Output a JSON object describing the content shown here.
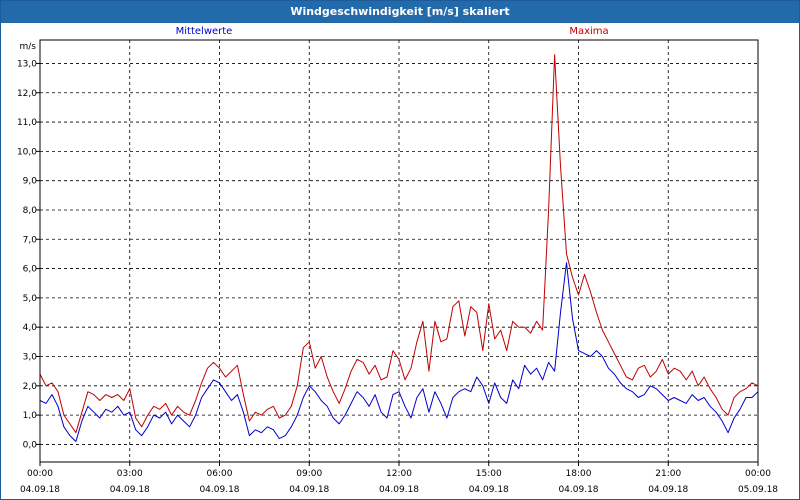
{
  "window": {
    "title": "Windgeschwindigkeit [m/s] skaliert"
  },
  "colors": {
    "mittel": "#0000cc",
    "maxima": "#c00000",
    "title_bar": "#236aab"
  },
  "chart_data": {
    "type": "line",
    "title": "Windgeschwindigkeit [m/s] skaliert",
    "ylabel": "m/s",
    "xlabel": "",
    "ylim": [
      -0.6,
      13.8
    ],
    "xlim": [
      0,
      24
    ],
    "grid": true,
    "y_ticks": [
      "0,0",
      "1,0",
      "2,0",
      "3,0",
      "4,0",
      "5,0",
      "6,0",
      "7,0",
      "8,0",
      "9,0",
      "10,0",
      "11,0",
      "12,0",
      "13,0"
    ],
    "x_ticks": [
      {
        "time": "00:00",
        "date": "04.09.18"
      },
      {
        "time": "03:00",
        "date": "04.09.18"
      },
      {
        "time": "06:00",
        "date": "04.09.18"
      },
      {
        "time": "09:00",
        "date": "04.09.18"
      },
      {
        "time": "12:00",
        "date": "04.09.18"
      },
      {
        "time": "15:00",
        "date": "04.09.18"
      },
      {
        "time": "18:00",
        "date": "04.09.18"
      },
      {
        "time": "21:00",
        "date": "04.09.18"
      },
      {
        "time": "00:00",
        "date": "05.09.18"
      }
    ],
    "x_unit": "hours since 04.09.18 00:00",
    "series": [
      {
        "name": "Mittelwerte",
        "color": "#0000cc",
        "x": [
          0,
          0.2,
          0.4,
          0.6,
          0.8,
          1.0,
          1.2,
          1.4,
          1.6,
          1.8,
          2.0,
          2.2,
          2.4,
          2.6,
          2.8,
          3.0,
          3.2,
          3.4,
          3.6,
          3.8,
          4.0,
          4.2,
          4.4,
          4.6,
          4.8,
          5.0,
          5.2,
          5.4,
          5.6,
          5.8,
          6.0,
          6.2,
          6.4,
          6.6,
          6.8,
          7.0,
          7.2,
          7.4,
          7.6,
          7.8,
          8.0,
          8.2,
          8.4,
          8.6,
          8.8,
          9.0,
          9.2,
          9.4,
          9.6,
          9.8,
          10.0,
          10.2,
          10.4,
          10.6,
          10.8,
          11.0,
          11.2,
          11.4,
          11.6,
          11.8,
          12.0,
          12.2,
          12.4,
          12.6,
          12.8,
          13.0,
          13.2,
          13.4,
          13.6,
          13.8,
          14.0,
          14.2,
          14.4,
          14.6,
          14.8,
          15.0,
          15.2,
          15.4,
          15.6,
          15.8,
          16.0,
          16.2,
          16.4,
          16.6,
          16.8,
          17.0,
          17.2,
          17.4,
          17.6,
          17.8,
          18.0,
          18.2,
          18.4,
          18.6,
          18.8,
          19.0,
          19.2,
          19.4,
          19.6,
          19.8,
          20.0,
          20.2,
          20.4,
          20.6,
          20.8,
          21.0,
          21.2,
          21.4,
          21.6,
          21.8,
          22.0,
          22.2,
          22.4,
          22.6,
          22.8,
          23.0,
          23.2,
          23.4,
          23.6,
          23.8,
          24.0
        ],
        "y": [
          1.5,
          1.4,
          1.7,
          1.3,
          0.6,
          0.3,
          0.1,
          0.8,
          1.3,
          1.1,
          0.9,
          1.2,
          1.1,
          1.3,
          1.0,
          1.1,
          0.5,
          0.3,
          0.6,
          1.0,
          0.9,
          1.1,
          0.7,
          1.0,
          0.8,
          0.6,
          1.0,
          1.6,
          1.9,
          2.2,
          2.1,
          1.8,
          1.5,
          1.7,
          1.1,
          0.3,
          0.5,
          0.4,
          0.6,
          0.5,
          0.2,
          0.3,
          0.6,
          1.0,
          1.6,
          2.0,
          1.8,
          1.5,
          1.3,
          0.9,
          0.7,
          1.0,
          1.4,
          1.8,
          1.6,
          1.3,
          1.7,
          1.1,
          0.9,
          1.7,
          1.8,
          1.3,
          0.9,
          1.6,
          1.9,
          1.1,
          1.8,
          1.4,
          0.9,
          1.6,
          1.8,
          1.9,
          1.8,
          2.3,
          2.0,
          1.4,
          2.1,
          1.6,
          1.4,
          2.2,
          1.9,
          2.7,
          2.4,
          2.6,
          2.2,
          2.8,
          2.5,
          4.5,
          6.2,
          4.3,
          3.2,
          3.1,
          3.0,
          3.2,
          3.0,
          2.6,
          2.4,
          2.1,
          1.9,
          1.8,
          1.6,
          1.7,
          2.0,
          1.9,
          1.7,
          1.5,
          1.6,
          1.5,
          1.4,
          1.7,
          1.5,
          1.6,
          1.3,
          1.1,
          0.8,
          0.4,
          0.9,
          1.2,
          1.6,
          1.6,
          1.8
        ]
      },
      {
        "name": "Maxima",
        "color": "#c00000",
        "x": [
          0,
          0.2,
          0.4,
          0.6,
          0.8,
          1.0,
          1.2,
          1.4,
          1.6,
          1.8,
          2.0,
          2.2,
          2.4,
          2.6,
          2.8,
          3.0,
          3.2,
          3.4,
          3.6,
          3.8,
          4.0,
          4.2,
          4.4,
          4.6,
          4.8,
          5.0,
          5.2,
          5.4,
          5.6,
          5.8,
          6.0,
          6.2,
          6.4,
          6.6,
          6.8,
          7.0,
          7.2,
          7.4,
          7.6,
          7.8,
          8.0,
          8.2,
          8.4,
          8.6,
          8.8,
          9.0,
          9.2,
          9.4,
          9.6,
          9.8,
          10.0,
          10.2,
          10.4,
          10.6,
          10.8,
          11.0,
          11.2,
          11.4,
          11.6,
          11.8,
          12.0,
          12.2,
          12.4,
          12.6,
          12.8,
          13.0,
          13.2,
          13.4,
          13.6,
          13.8,
          14.0,
          14.2,
          14.4,
          14.6,
          14.8,
          15.0,
          15.2,
          15.4,
          15.6,
          15.8,
          16.0,
          16.2,
          16.4,
          16.6,
          16.8,
          17.0,
          17.2,
          17.4,
          17.6,
          17.8,
          18.0,
          18.2,
          18.4,
          18.6,
          18.8,
          19.0,
          19.2,
          19.4,
          19.6,
          19.8,
          20.0,
          20.2,
          20.4,
          20.6,
          20.8,
          21.0,
          21.2,
          21.4,
          21.6,
          21.8,
          22.0,
          22.2,
          22.4,
          22.6,
          22.8,
          23.0,
          23.2,
          23.4,
          23.6,
          23.8,
          24.0
        ],
        "y": [
          2.4,
          2.0,
          2.1,
          1.8,
          1.0,
          0.7,
          0.4,
          1.1,
          1.8,
          1.7,
          1.5,
          1.7,
          1.6,
          1.7,
          1.5,
          1.9,
          0.9,
          0.6,
          1.0,
          1.3,
          1.2,
          1.4,
          1.0,
          1.3,
          1.1,
          1.0,
          1.5,
          2.1,
          2.6,
          2.8,
          2.6,
          2.3,
          2.5,
          2.7,
          1.7,
          0.8,
          1.1,
          1.0,
          1.2,
          1.3,
          0.9,
          1.0,
          1.3,
          2.0,
          3.3,
          3.5,
          2.6,
          3.0,
          2.3,
          1.8,
          1.4,
          1.9,
          2.5,
          2.9,
          2.8,
          2.4,
          2.7,
          2.2,
          2.3,
          3.2,
          2.9,
          2.2,
          2.6,
          3.5,
          4.2,
          2.5,
          4.2,
          3.5,
          3.6,
          4.7,
          4.9,
          3.7,
          4.7,
          4.5,
          3.2,
          4.8,
          3.6,
          3.9,
          3.2,
          4.2,
          4.0,
          4.0,
          3.8,
          4.2,
          3.9,
          8.0,
          13.3,
          9.5,
          6.5,
          5.7,
          5.1,
          5.8,
          5.2,
          4.5,
          3.9,
          3.5,
          3.1,
          2.7,
          2.3,
          2.2,
          2.6,
          2.7,
          2.3,
          2.5,
          2.9,
          2.4,
          2.6,
          2.5,
          2.2,
          2.5,
          2.0,
          2.3,
          1.9,
          1.6,
          1.2,
          1.0,
          1.6,
          1.8,
          1.9,
          2.1,
          2.0
        ]
      }
    ]
  }
}
